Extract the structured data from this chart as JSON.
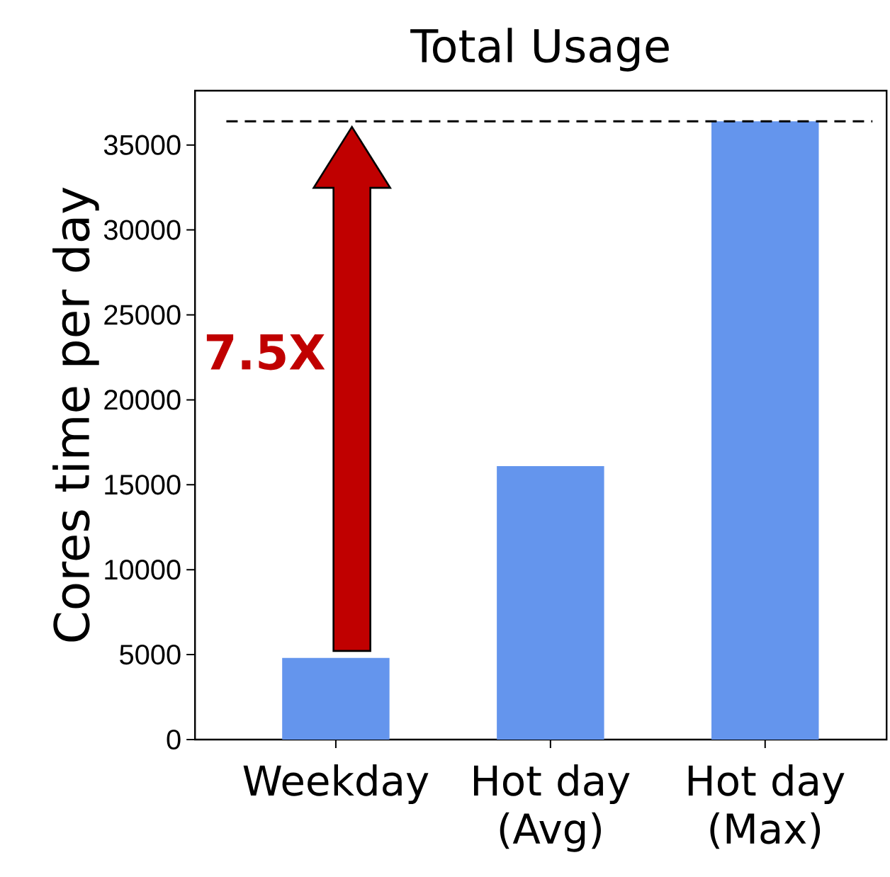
{
  "chart_data": {
    "type": "bar",
    "title": "Total Usage",
    "ylabel": "Cores time per day",
    "categories": [
      "Weekday",
      "Hot day (Avg)",
      "Hot day (Max)"
    ],
    "values": [
      4800,
      16100,
      36400
    ],
    "color": "#6495ed",
    "ylim": [
      0,
      38200
    ],
    "yticks": [
      0,
      5000,
      10000,
      15000,
      20000,
      25000,
      30000,
      35000
    ],
    "ref_lines": [
      {
        "axis": "y",
        "value": 36400,
        "color": "#000000",
        "line_style": "dashed"
      }
    ],
    "annotations": [
      "7.5X"
    ]
  }
}
